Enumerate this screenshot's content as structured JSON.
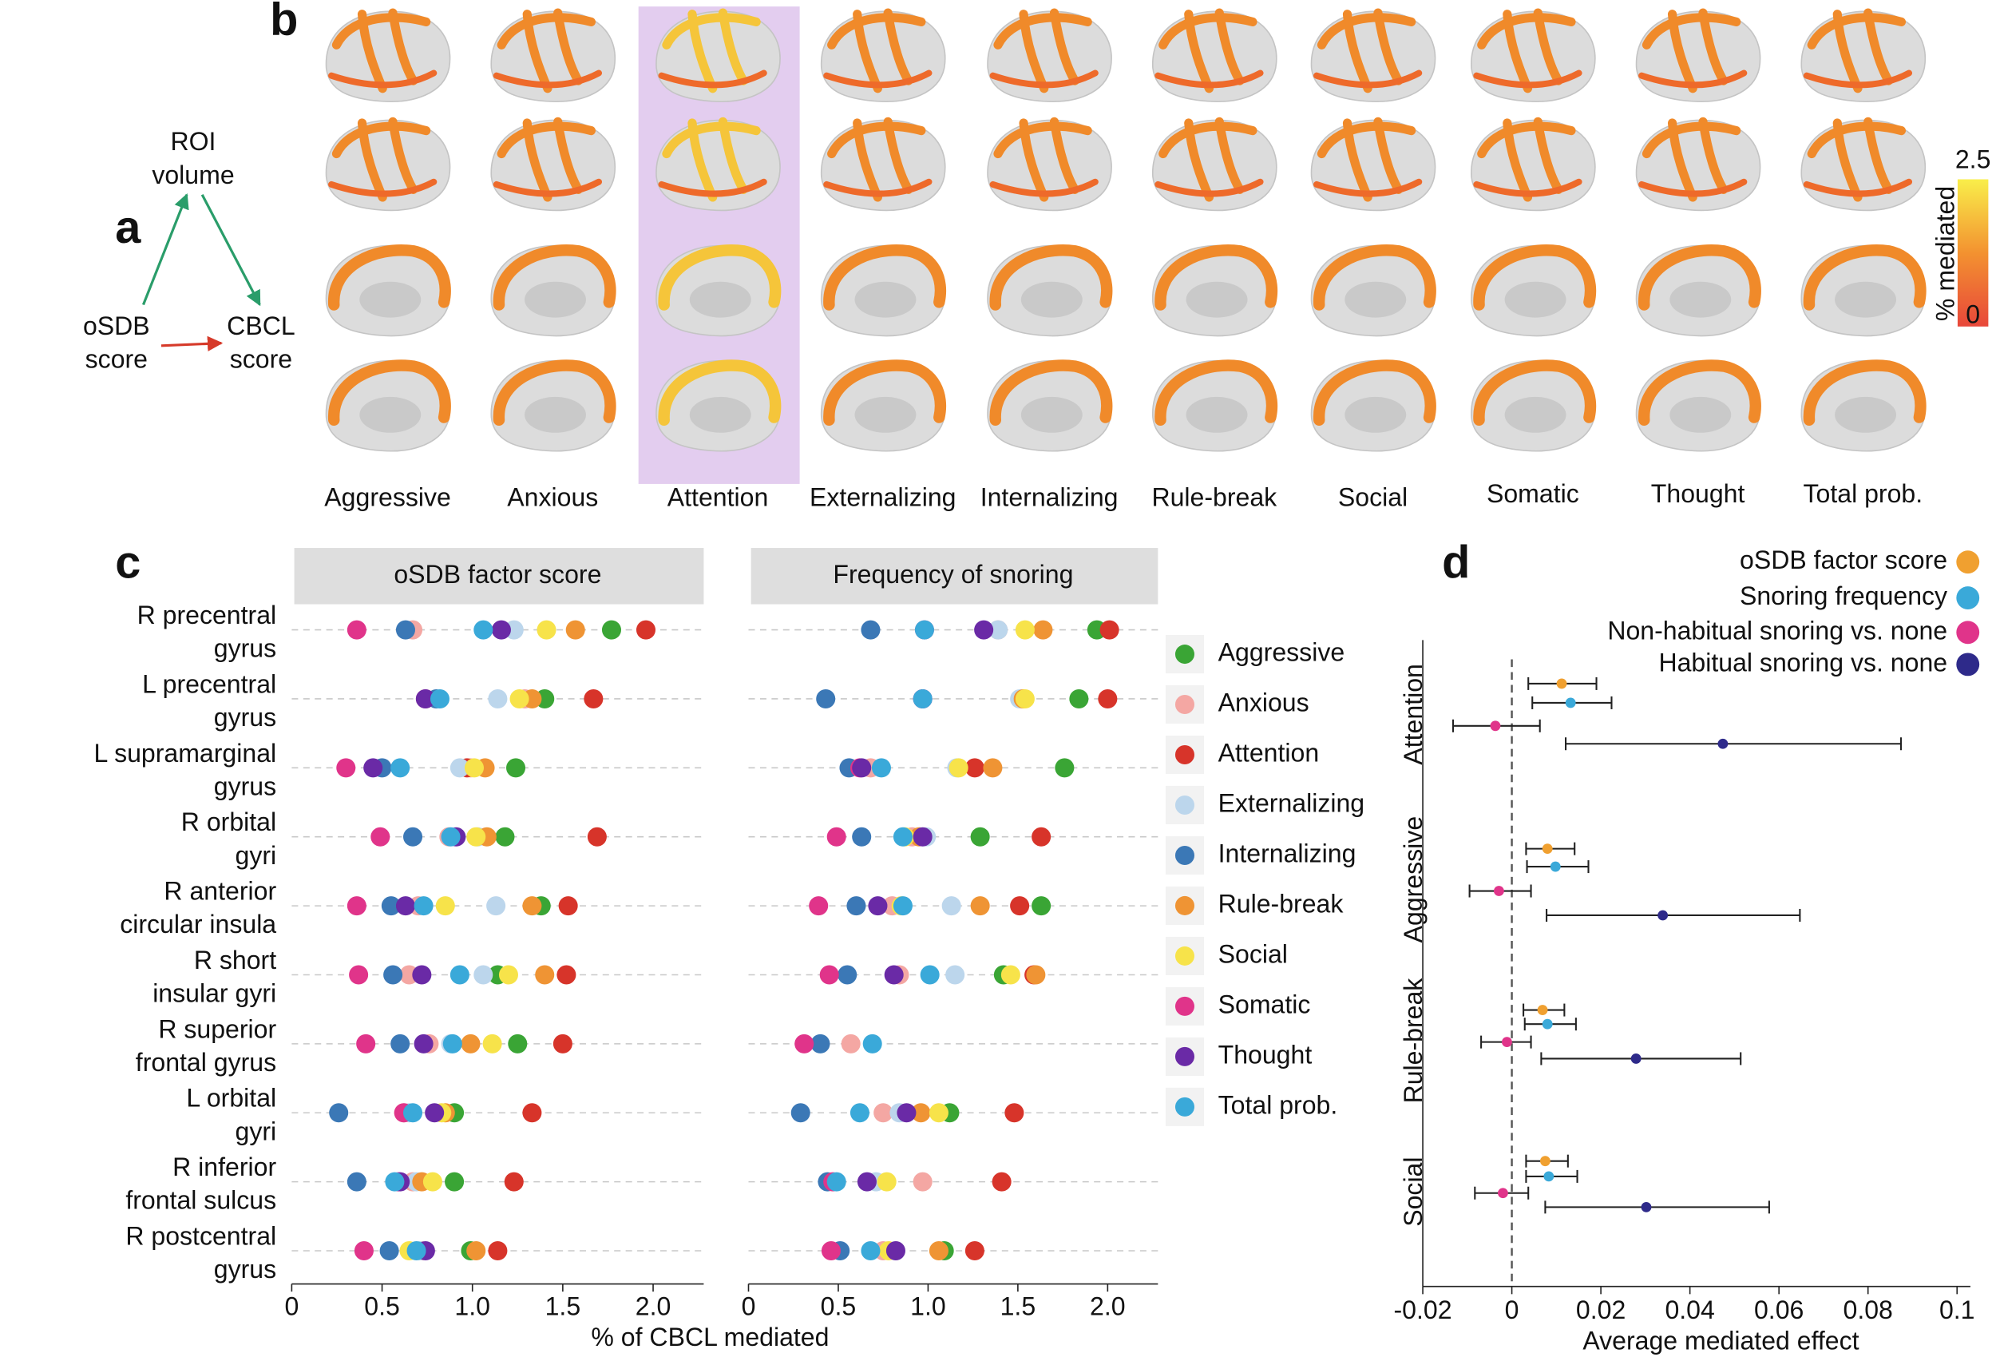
{
  "panel_labels": [
    "a",
    "b",
    "c",
    "d"
  ],
  "diagram": {
    "nodes": [
      {
        "label": [
          "ROI",
          "volume"
        ]
      },
      {
        "label": [
          "oSDB",
          "score"
        ]
      },
      {
        "label": [
          "CBCL",
          "score"
        ]
      }
    ]
  },
  "brain_panel": {
    "measures": [
      "Aggressive",
      "Anxious",
      "Attention",
      "Externalizing",
      "Internalizing",
      "Rule-break",
      "Social",
      "Somatic",
      "Thought",
      "Total prob."
    ],
    "colorbar": {
      "label": "% mediated",
      "max": 2.5,
      "min": 0
    }
  },
  "chart_data": [
    {
      "type": "dot",
      "title": "oSDB factor score",
      "xlabel": "% of CBCL mediated",
      "categories": [
        [
          "R precentral",
          "gyrus"
        ],
        [
          "L precentral",
          "gyrus"
        ],
        [
          "L supramarginal",
          "gyrus"
        ],
        [
          "R orbital",
          "gyri"
        ],
        [
          "R anterior",
          "circular insula"
        ],
        [
          "R short",
          "insular gyri"
        ],
        [
          "R superior",
          "frontal gyrus"
        ],
        [
          "L orbital",
          "gyri"
        ],
        [
          "R inferior",
          "frontal sulcus"
        ],
        [
          "R postcentral",
          "gyrus"
        ]
      ],
      "xlim": [
        0,
        2.28
      ],
      "xticks": [
        0,
        0.5,
        {
          "value": 1,
          "label": "1.0"
        },
        1.5,
        {
          "value": 2,
          "label": "2.0"
        }
      ],
      "series": [
        {
          "name": "Aggressive",
          "color": "#3aa535",
          "values": [
            1.77,
            1.4,
            1.24,
            1.18,
            1.38,
            1.14,
            1.25,
            0.9,
            0.9,
            0.99
          ]
        },
        {
          "name": "Anxious",
          "color": "#f4a7a3",
          "values": [
            0.67,
            1.29,
            0.99,
            0.87,
            0.7,
            0.65,
            0.76,
            0.62,
            0.67,
            0.72
          ]
        },
        {
          "name": "Attention",
          "color": "#d7342a",
          "values": [
            1.96,
            1.67,
            0.97,
            1.69,
            1.53,
            1.52,
            1.5,
            1.33,
            1.23,
            1.14
          ]
        },
        {
          "name": "Externalizing",
          "color": "#bcd6ec",
          "values": [
            1.23,
            1.14,
            0.93,
            1.03,
            1.13,
            1.06,
            0.88,
            0.65,
            0.69,
            0.71
          ]
        },
        {
          "name": "Internalizing",
          "color": "#3b78b6",
          "values": [
            0.63,
            0.8,
            0.5,
            0.67,
            0.55,
            0.56,
            0.6,
            0.26,
            0.36,
            0.54
          ]
        },
        {
          "name": "Rule-break",
          "color": "#ef9434",
          "values": [
            1.57,
            1.33,
            1.07,
            1.08,
            1.33,
            1.4,
            0.99,
            0.85,
            0.72,
            1.02
          ]
        },
        {
          "name": "Social",
          "color": "#f7e34a",
          "values": [
            1.41,
            1.26,
            1.01,
            1.02,
            0.85,
            1.2,
            1.11,
            0.83,
            0.78,
            0.65
          ]
        },
        {
          "name": "Somatic",
          "color": "#e0348a",
          "values": [
            0.36,
            0.74,
            0.3,
            0.49,
            0.36,
            0.37,
            0.41,
            0.62,
            0.59,
            0.4
          ]
        },
        {
          "name": "Thought",
          "color": "#6a2aa6",
          "values": [
            1.16,
            0.74,
            0.45,
            0.91,
            0.63,
            0.72,
            0.73,
            0.79,
            0.6,
            0.74
          ]
        },
        {
          "name": "Total prob.",
          "color": "#3aa9d9",
          "values": [
            1.06,
            0.82,
            0.6,
            0.88,
            0.73,
            0.93,
            0.89,
            0.67,
            0.57,
            0.69
          ]
        }
      ]
    },
    {
      "type": "dot",
      "title": "Frequency of snoring",
      "xlim": [
        0,
        2.28
      ],
      "xticks": [
        0,
        0.5,
        {
          "value": 1,
          "label": "1.0"
        },
        1.5,
        {
          "value": 2,
          "label": "2.0"
        }
      ],
      "series": [
        {
          "color": "#3aa535",
          "values": [
            1.94,
            1.84,
            1.76,
            1.29,
            1.63,
            1.42,
            null,
            1.12,
            null,
            1.09
          ]
        },
        {
          "color": "#f4a7a3",
          "values": [
            1.39,
            1.52,
            0.68,
            0.91,
            0.8,
            0.84,
            0.57,
            0.75,
            0.97,
            0.75
          ]
        },
        {
          "color": "#d7342a",
          "values": [
            2.01,
            2.0,
            1.26,
            1.63,
            1.51,
            1.59,
            null,
            1.48,
            1.41,
            1.26
          ]
        },
        {
          "color": "#bcd6ec",
          "values": [
            1.39,
            1.51,
            1.16,
            0.99,
            1.13,
            1.15,
            null,
            0.84,
            0.71,
            0.82
          ]
        },
        {
          "color": "#3b78b6",
          "values": [
            0.68,
            0.43,
            0.56,
            0.63,
            0.6,
            0.55,
            0.4,
            0.29,
            0.44,
            0.51
          ]
        },
        {
          "color": "#ef9434",
          "values": [
            1.64,
            1.53,
            1.36,
            0.95,
            1.29,
            1.6,
            null,
            0.96,
            null,
            1.06
          ]
        },
        {
          "color": "#f7e34a",
          "values": [
            1.54,
            1.54,
            1.17,
            0.87,
            0.85,
            1.46,
            null,
            1.06,
            0.77,
            0.78
          ]
        },
        {
          "color": "#e0348a",
          "values": [
            0.98,
            0.97,
            0.62,
            0.49,
            0.39,
            0.45,
            0.31,
            null,
            0.47,
            0.46
          ]
        },
        {
          "color": "#6a2aa6",
          "values": [
            1.31,
            0.97,
            0.63,
            0.97,
            0.72,
            0.81,
            null,
            0.88,
            0.66,
            0.82
          ]
        },
        {
          "color": "#3aa9d9",
          "values": [
            0.98,
            0.97,
            0.74,
            0.86,
            0.86,
            1.01,
            0.69,
            0.62,
            0.49,
            0.68
          ]
        }
      ]
    },
    {
      "type": "forest",
      "xlabel": "Average mediated effect",
      "categories": [
        "Attention",
        "Aggressive",
        "Rule-break",
        "Social"
      ],
      "xlim": [
        -0.02,
        0.103
      ],
      "xticks": [
        -0.02,
        0,
        0.02,
        0.04,
        0.06,
        0.08,
        0.1
      ],
      "series": [
        {
          "name": "oSDB factor score",
          "color": "#f0a030",
          "values": [
            0.0112,
            0.008,
            0.0069,
            0.0075
          ],
          "low": [
            0.0037,
            0.0032,
            0.0026,
            0.0032
          ],
          "high": [
            0.019,
            0.0141,
            0.0118,
            0.0126
          ]
        },
        {
          "name": "Snoring frequency",
          "color": "#3aa9d9",
          "values": [
            0.0132,
            0.0098,
            0.008,
            0.0083
          ],
          "low": [
            0.0046,
            0.0034,
            0.0029,
            0.0032
          ],
          "high": [
            0.0224,
            0.0172,
            0.0144,
            0.0147
          ]
        },
        {
          "name": "Non-habitual snoring vs. none",
          "color": "#e0348a",
          "values": [
            -0.0037,
            -0.0029,
            -0.0011,
            -0.002
          ],
          "low": [
            -0.0132,
            -0.0095,
            -0.0069,
            -0.0083
          ],
          "high": [
            0.0063,
            0.0043,
            0.0043,
            0.0037
          ]
        },
        {
          "name": "Habitual snoring vs. none",
          "color": "#2e2a8a",
          "values": [
            0.0474,
            0.0339,
            0.0279,
            0.0302
          ],
          "low": [
            0.0121,
            0.0078,
            0.0066,
            0.0075
          ],
          "high": [
            0.0874,
            0.0647,
            0.0514,
            0.0578
          ]
        }
      ]
    }
  ]
}
